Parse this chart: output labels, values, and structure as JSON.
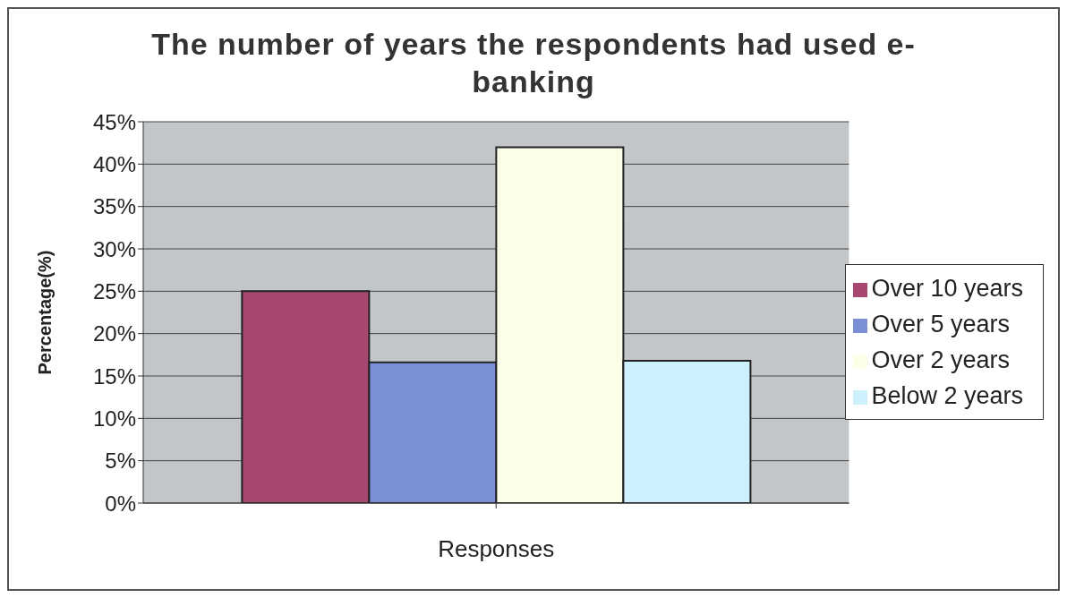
{
  "chart_data": {
    "type": "bar",
    "title": "The number of years the respondents had used e-banking",
    "xlabel": "Responses",
    "ylabel": "Percentage(%)",
    "categories": [
      null
    ],
    "series": [
      {
        "name": "Over 10 years",
        "color": "#a8476f",
        "values": [
          25
        ]
      },
      {
        "name": "Over 5 years",
        "color": "#7a8fd6",
        "values": [
          16.6
        ]
      },
      {
        "name": "Over 2 years",
        "color": "#fcffe8",
        "values": [
          42
        ]
      },
      {
        "name": "Below 2 years",
        "color": "#ccf0fc",
        "values": [
          16.8
        ]
      }
    ],
    "ylim": [
      0,
      45
    ],
    "yticks": [
      {
        "value": 0,
        "label": "0%"
      },
      {
        "value": 5,
        "label": "5%"
      },
      {
        "value": 10,
        "label": "10%"
      },
      {
        "value": 15,
        "label": "15%"
      },
      {
        "value": 20,
        "label": "20%"
      },
      {
        "value": 25,
        "label": "25%"
      },
      {
        "value": 30,
        "label": "30%"
      },
      {
        "value": 35,
        "label": "35%"
      },
      {
        "value": 40,
        "label": "40%"
      },
      {
        "value": 45,
        "label": "45%"
      }
    ],
    "grid": "y",
    "legend": "right"
  }
}
